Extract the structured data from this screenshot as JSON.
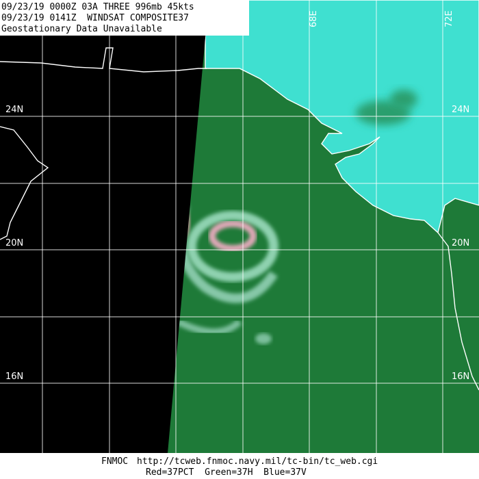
{
  "header": {
    "lines": [
      "09/23/19 0000Z 03A THREE 996mb 45kts",
      "09/23/19 0141Z  WINDSAT COMPOSITE37",
      "Geostationary Data Unavailable"
    ]
  },
  "grid_labels": {
    "latitude": [
      "24N",
      "20N",
      "16N"
    ],
    "longitude": [
      "68E",
      "72E"
    ]
  },
  "footer": {
    "source": "FNMOC",
    "url": "http://tcweb.fnmoc.navy.mil/tc-bin/tc_web.cgi",
    "channels": "Red=37PCT  Green=37H  Blue=37V"
  }
}
